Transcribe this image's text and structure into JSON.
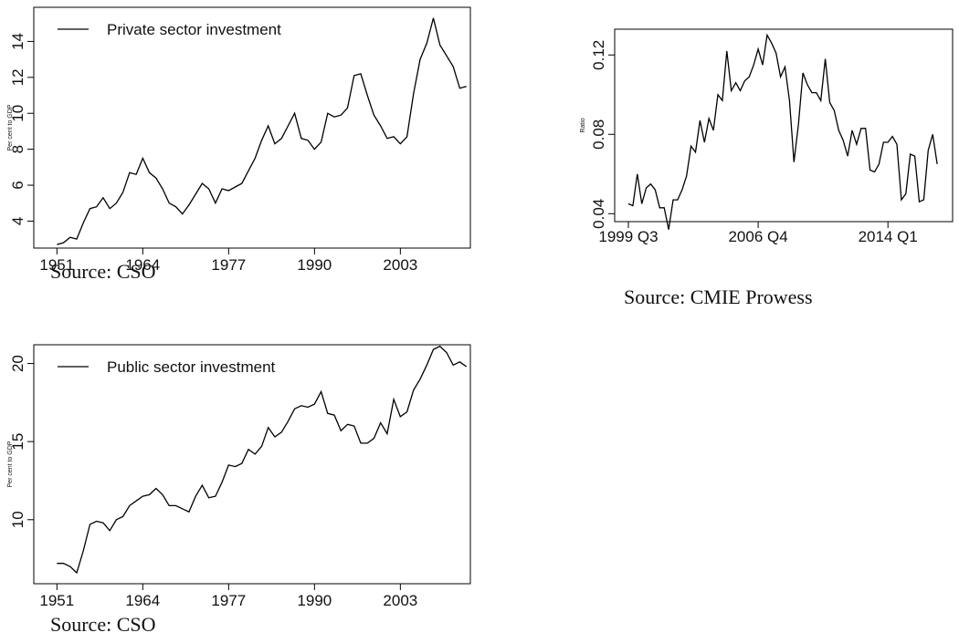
{
  "chart_data": [
    {
      "type": "line",
      "x": [
        1951,
        1952,
        1953,
        1954,
        1955,
        1956,
        1957,
        1958,
        1959,
        1960,
        1961,
        1962,
        1963,
        1964,
        1965,
        1966,
        1967,
        1968,
        1969,
        1970,
        1971,
        1972,
        1973,
        1974,
        1975,
        1976,
        1977,
        1978,
        1979,
        1980,
        1981,
        1982,
        1983,
        1984,
        1985,
        1986,
        1987,
        1988,
        1989,
        1990,
        1991,
        1992,
        1993,
        1994,
        1995,
        1996,
        1997,
        1998,
        1999,
        2000,
        2001,
        2002,
        2003,
        2004,
        2005,
        2006,
        2007,
        2008,
        2009,
        2010,
        2011,
        2012,
        2013
      ],
      "series": [
        {
          "name": "Private sector investment",
          "color": "#000000",
          "values": [
            2.7,
            2.8,
            3.1,
            3.0,
            3.9,
            4.7,
            4.8,
            5.3,
            4.7,
            5.0,
            5.6,
            6.7,
            6.6,
            7.5,
            6.7,
            6.4,
            5.8,
            5.0,
            4.8,
            4.4,
            4.9,
            5.5,
            6.1,
            5.8,
            5.0,
            5.8,
            5.7,
            5.9,
            6.1,
            6.8,
            7.5,
            8.5,
            9.3,
            8.3,
            8.6,
            9.3,
            10.0,
            8.6,
            8.5,
            8.0,
            8.4,
            10.0,
            9.8,
            9.9,
            10.3,
            12.1,
            12.2,
            11.0,
            9.9,
            9.3,
            8.6,
            8.7,
            8.3,
            8.7,
            11.1,
            13.0,
            13.9,
            15.3,
            13.8,
            13.2,
            12.6,
            11.4,
            11.5
          ]
        }
      ],
      "ylabel": "Per cent to GDP",
      "xlim": [
        1947.5,
        2013.6
      ],
      "xticks": [
        1951,
        1964,
        1977,
        1990,
        2003
      ],
      "ylim": [
        2.5,
        15.9
      ],
      "yticks": [
        4,
        6,
        8,
        10,
        12,
        14
      ],
      "legend": "top-left",
      "caption": "Source: CSO"
    },
    {
      "type": "line",
      "categories": [
        "1999 Q3",
        null,
        null,
        null,
        null,
        null,
        null,
        null,
        null,
        null,
        null,
        null,
        null,
        null,
        null,
        null,
        null,
        null,
        null,
        null,
        null,
        null,
        null,
        null,
        null,
        null,
        null,
        null,
        null,
        "2006 Q4",
        null,
        null,
        null,
        null,
        null,
        null,
        null,
        null,
        null,
        null,
        null,
        null,
        null,
        null,
        null,
        null,
        null,
        null,
        null,
        null,
        null,
        null,
        null,
        null,
        null,
        null,
        null,
        null,
        "2014 Q1",
        null,
        null,
        null,
        null,
        null,
        null,
        null,
        null,
        null,
        null,
        null
      ],
      "values": [
        0.045,
        0.044,
        0.06,
        0.045,
        0.053,
        0.055,
        0.052,
        0.043,
        0.043,
        0.032,
        0.047,
        0.047,
        0.052,
        0.059,
        0.074,
        0.071,
        0.087,
        0.076,
        0.088,
        0.082,
        0.1,
        0.097,
        0.122,
        0.102,
        0.106,
        0.102,
        0.107,
        0.109,
        0.115,
        0.123,
        0.115,
        0.13,
        0.126,
        0.121,
        0.109,
        0.114,
        0.097,
        0.066,
        0.085,
        0.111,
        0.105,
        0.101,
        0.101,
        0.097,
        0.118,
        0.096,
        0.092,
        0.082,
        0.077,
        0.069,
        0.082,
        0.075,
        0.083,
        0.083,
        0.062,
        0.061,
        0.065,
        0.076,
        0.076,
        0.079,
        0.075,
        0.047,
        0.05,
        0.07,
        0.069,
        0.046,
        0.047,
        0.072,
        0.08,
        0.065
      ],
      "color": "#000000",
      "ylabel": "Ratio",
      "ylim": [
        0.036,
        0.133
      ],
      "yticks": [
        0.04,
        0.08,
        0.12
      ],
      "caption": "Source: CMIE Prowess"
    },
    {
      "type": "line",
      "x": [
        1951,
        1952,
        1953,
        1954,
        1955,
        1956,
        1957,
        1958,
        1959,
        1960,
        1961,
        1962,
        1963,
        1964,
        1965,
        1966,
        1967,
        1968,
        1969,
        1970,
        1971,
        1972,
        1973,
        1974,
        1975,
        1976,
        1977,
        1978,
        1979,
        1980,
        1981,
        1982,
        1983,
        1984,
        1985,
        1986,
        1987,
        1988,
        1989,
        1990,
        1991,
        1992,
        1993,
        1994,
        1995,
        1996,
        1997,
        1998,
        1999,
        2000,
        2001,
        2002,
        2003,
        2004,
        2005,
        2006,
        2007,
        2008,
        2009,
        2010,
        2011,
        2012,
        2013
      ],
      "series": [
        {
          "name": "Public sector investment",
          "color": "#000000",
          "values": [
            7.2,
            7.2,
            7.0,
            6.6,
            8.0,
            9.7,
            9.9,
            9.8,
            9.3,
            10.0,
            10.2,
            10.9,
            11.2,
            11.5,
            11.6,
            12.0,
            11.6,
            10.9,
            10.9,
            10.7,
            10.5,
            11.5,
            12.2,
            11.4,
            11.5,
            12.4,
            13.5,
            13.4,
            13.6,
            14.5,
            14.2,
            14.7,
            15.9,
            15.3,
            15.6,
            16.3,
            17.1,
            17.3,
            17.2,
            17.4,
            18.2,
            16.8,
            16.7,
            15.7,
            16.1,
            16.0,
            14.9,
            14.9,
            15.2,
            16.2,
            15.5,
            17.7,
            16.6,
            16.9,
            18.3,
            19.0,
            19.9,
            20.9,
            21.1,
            20.7,
            19.9,
            20.1,
            19.8
          ]
        }
      ],
      "ylabel": "Per cent to GDP",
      "xlim": [
        1947.5,
        2013.6
      ],
      "xticks": [
        1951,
        1964,
        1977,
        1990,
        2003
      ],
      "ylim": [
        5.9,
        21.2
      ],
      "yticks": [
        10,
        15,
        20
      ],
      "legend": "top-left",
      "caption": "Source: CSO"
    }
  ]
}
